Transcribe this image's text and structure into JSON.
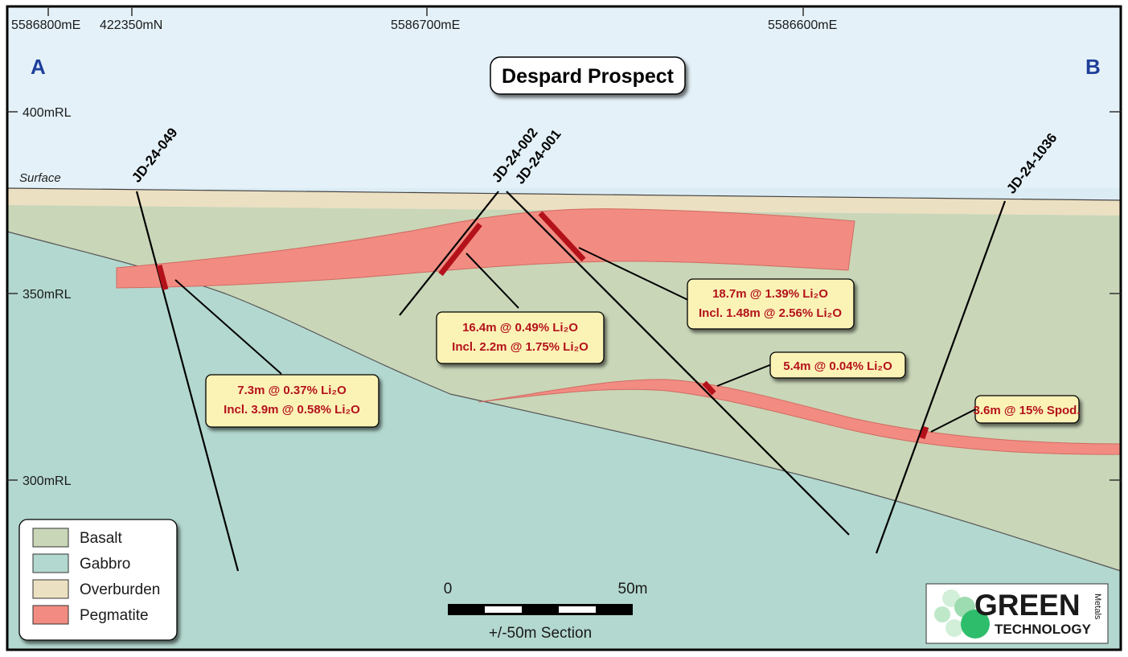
{
  "title": "Despard Prospect",
  "section_ends": {
    "left": "A",
    "right": "B"
  },
  "eastings": [
    "5586800mE",
    "422350mN",
    "5586700mE",
    "5586600mE"
  ],
  "rl_labels": [
    "400mRL",
    "350mRL",
    "300mRL"
  ],
  "surface_label": "Surface",
  "drill_holes": [
    "JD-24-049",
    "JD-24-002",
    "JD-24-001",
    "JD-24-1036"
  ],
  "intercepts": [
    {
      "line1": "7.3m @ 0.37% Li₂O",
      "line2": "Incl. 3.9m @ 0.58% Li₂O"
    },
    {
      "line1": "16.4m @ 0.49% Li₂O",
      "line2": "Incl. 2.2m @ 1.75% Li₂O"
    },
    {
      "line1": "18.7m @ 1.39% Li₂O",
      "line2": "Incl. 1.48m @ 2.56% Li₂O"
    },
    {
      "line1": "5.4m @ 0.04% Li₂O"
    },
    {
      "line1": "3.6m @ 15% Spod."
    }
  ],
  "legend": [
    {
      "label": "Basalt",
      "color": "#c9d6b8"
    },
    {
      "label": "Gabbro",
      "color": "#b3d8cf"
    },
    {
      "label": "Overburden",
      "color": "#ece0c2"
    },
    {
      "label": "Pegmatite",
      "color": "#f28c82"
    }
  ],
  "scale_bar": {
    "start": "0",
    "end": "50m",
    "caption": "+/-50m Section"
  },
  "logo": {
    "line1": "GREEN",
    "line2": "TECHNOLOGY",
    "side": "Metals",
    "accent": "#2ebd6b"
  }
}
